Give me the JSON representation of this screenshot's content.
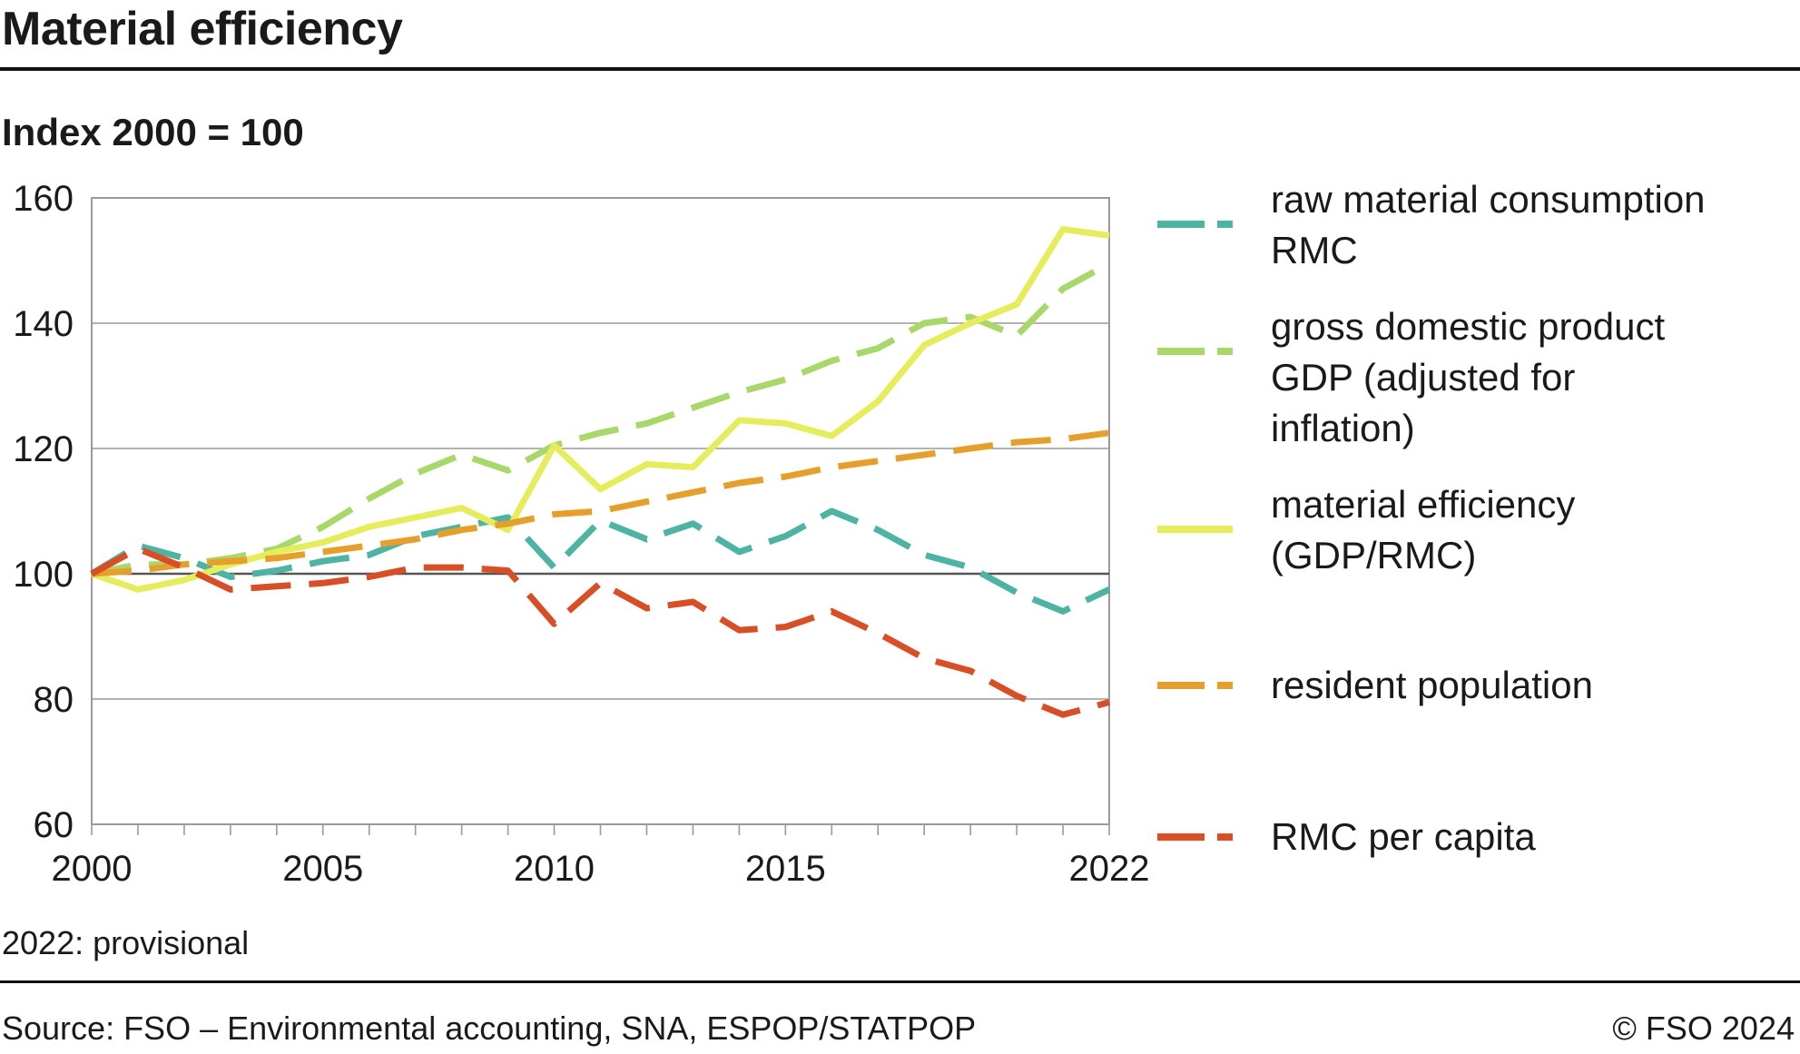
{
  "header": {
    "title": "Material efficiency",
    "subtitle": "Index 2000 = 100"
  },
  "footer": {
    "note": "2022: provisional",
    "source": "Source: FSO – Environmental accounting, SNA, ESPOP/STATPOP",
    "copyright": "© FSO 2024"
  },
  "chart_data": {
    "type": "line",
    "ylim": [
      60,
      160
    ],
    "yticks": [
      "60",
      "80",
      "100",
      "120",
      "140",
      "160"
    ],
    "xlim": [
      2000,
      2022
    ],
    "xticks": [
      "2000",
      "2005",
      "2010",
      "2015",
      "2022"
    ],
    "grid": true,
    "legend_position": "right",
    "x": [
      2000,
      2001,
      2002,
      2003,
      2004,
      2005,
      2006,
      2007,
      2008,
      2009,
      2010,
      2011,
      2012,
      2013,
      2014,
      2015,
      2016,
      2017,
      2018,
      2019,
      2020,
      2021,
      2022
    ],
    "series": [
      {
        "name": "raw material consumption RMC",
        "color": "#4db3a2",
        "dashed": true,
        "values": [
          100,
          104.5,
          102.5,
          99.5,
          100.5,
          102,
          103,
          106,
          107.5,
          109,
          101,
          108.5,
          105.5,
          108,
          103.5,
          106,
          110,
          107,
          103,
          101,
          97,
          94,
          97.5
        ]
      },
      {
        "name": "gross domestic product GDP (adjusted for inflation)",
        "color": "#a8d86a",
        "dashed": true,
        "values": [
          100,
          101.5,
          101.5,
          102.5,
          104,
          107.5,
          112,
          116,
          119,
          116.5,
          120.5,
          122.5,
          124,
          126.5,
          129,
          131,
          134,
          136,
          140,
          141,
          138,
          145.5,
          149.5
        ]
      },
      {
        "name": "material efficiency (GDP/RMC)",
        "color": "#e6ed5c",
        "dashed": false,
        "values": [
          100,
          97.5,
          99,
          101.5,
          103.5,
          105,
          107.5,
          109,
          110.5,
          107,
          120.5,
          113.5,
          117.5,
          117,
          124.5,
          124,
          122,
          127.5,
          136.5,
          140,
          143,
          155,
          154
        ]
      },
      {
        "name": "resident population",
        "color": "#e59f2a",
        "dashed": true,
        "values": [
          100,
          100.5,
          101.5,
          102,
          102.5,
          103.5,
          104.5,
          105.5,
          107,
          108,
          109.5,
          110,
          111.5,
          113,
          114.5,
          115.5,
          117,
          118,
          119,
          120,
          121,
          121.5,
          122.5
        ]
      },
      {
        "name": "RMC per capita",
        "color": "#d64f26",
        "dashed": true,
        "values": [
          100,
          104,
          101,
          97.5,
          98,
          98.5,
          99.5,
          101,
          101,
          100.5,
          92,
          98.5,
          94.5,
          95.5,
          91,
          91.5,
          94,
          90.5,
          86.5,
          84.5,
          80.5,
          77.5,
          79.5
        ]
      }
    ],
    "legend_labels": [
      [
        "raw material consumption",
        "RMC"
      ],
      [
        "gross domestic product",
        "GDP (adjusted for",
        "inflation)"
      ],
      [
        "material efficiency",
        "(GDP/RMC)"
      ],
      [
        "resident population"
      ],
      [
        "RMC per capita"
      ]
    ]
  }
}
